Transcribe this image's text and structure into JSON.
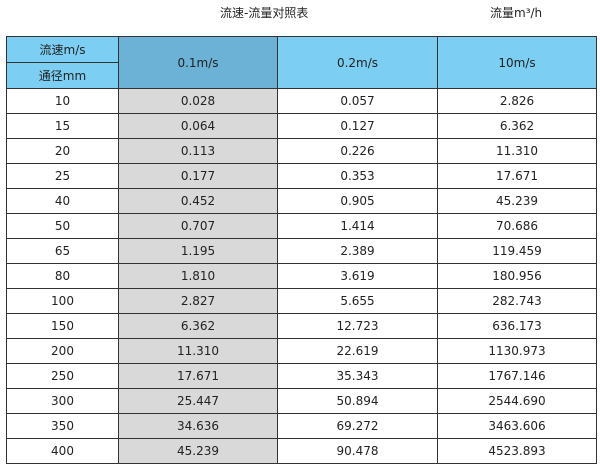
{
  "title": "流速-流量对照表",
  "unit_label": "流量m³/h",
  "header": {
    "velocity_label": "流速m/s",
    "diameter_label": "通径mm",
    "columns": [
      "0.1m/s",
      "0.2m/s",
      "10m/s"
    ]
  },
  "colors": {
    "header": "#7ccff3",
    "highlight_header": "#6bb2d6",
    "highlight_column": "#d9d9d9"
  },
  "rows": [
    [
      "10",
      "0.028",
      "0.057",
      "2.826"
    ],
    [
      "15",
      "0.064",
      "0.127",
      "6.362"
    ],
    [
      "20",
      "0.113",
      "0.226",
      "11.310"
    ],
    [
      "25",
      "0.177",
      "0.353",
      "17.671"
    ],
    [
      "40",
      "0.452",
      "0.905",
      "45.239"
    ],
    [
      "50",
      "0.707",
      "1.414",
      "70.686"
    ],
    [
      "65",
      "1.195",
      "2.389",
      "119.459"
    ],
    [
      "80",
      "1.810",
      "3.619",
      "180.956"
    ],
    [
      "100",
      "2.827",
      "5.655",
      "282.743"
    ],
    [
      "150",
      "6.362",
      "12.723",
      "636.173"
    ],
    [
      "200",
      "11.310",
      "22.619",
      "1130.973"
    ],
    [
      "250",
      "17.671",
      "35.343",
      "1767.146"
    ],
    [
      "300",
      "25.447",
      "50.894",
      "2544.690"
    ],
    [
      "350",
      "34.636",
      "69.272",
      "3463.606"
    ],
    [
      "400",
      "45.239",
      "90.478",
      "4523.893"
    ]
  ]
}
